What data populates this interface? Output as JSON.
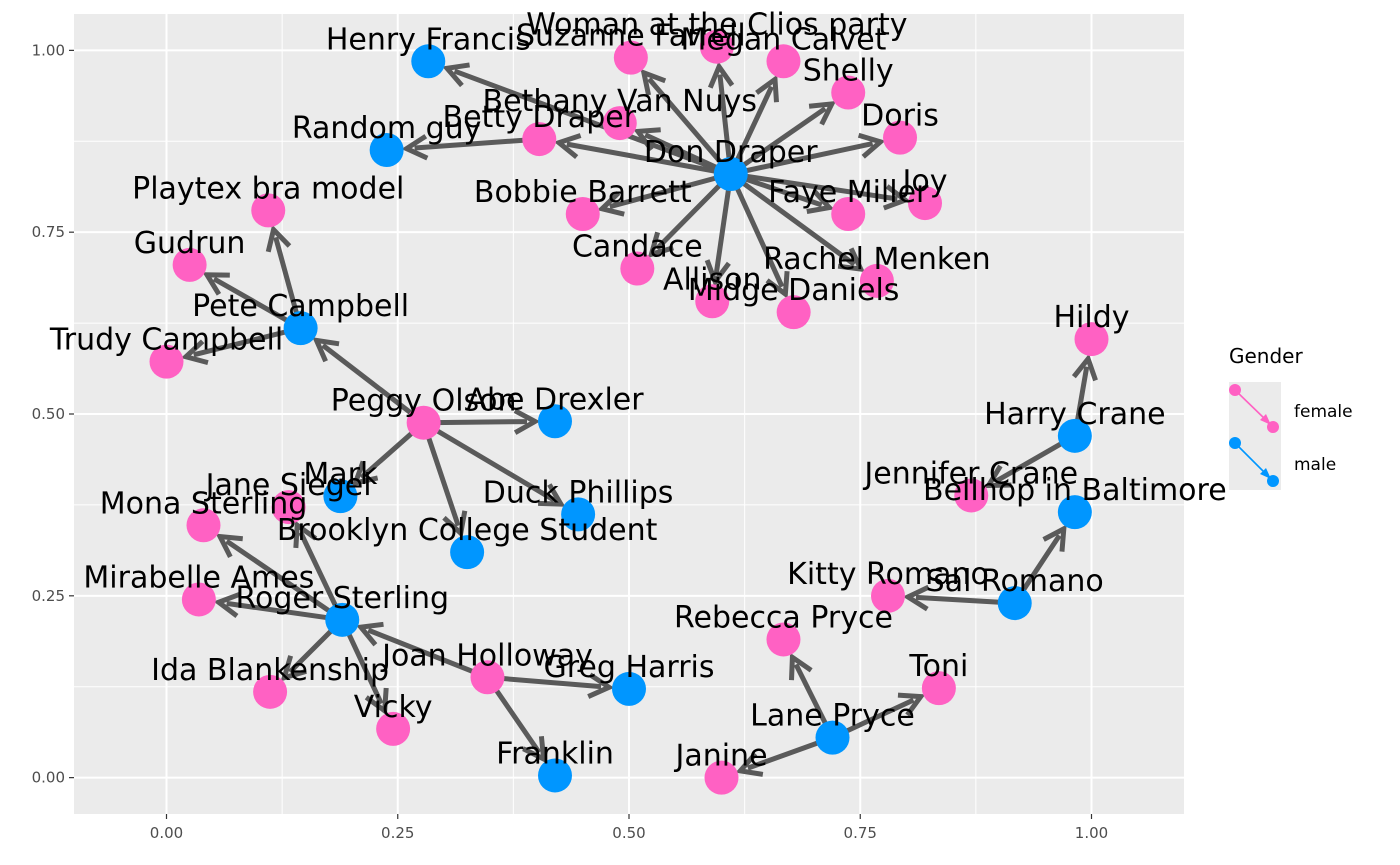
{
  "chart_data": {
    "type": "network",
    "xlim": [
      -0.1,
      1.1
    ],
    "ylim": [
      -0.05,
      1.05
    ],
    "x_ticks": [
      {
        "value": 0.0,
        "label": "0.00"
      },
      {
        "value": 0.25,
        "label": "0.25"
      },
      {
        "value": 0.5,
        "label": "0.50"
      },
      {
        "value": 0.75,
        "label": "0.75"
      },
      {
        "value": 1.0,
        "label": "1.00"
      }
    ],
    "y_ticks": [
      {
        "value": 0.0,
        "label": "0.00"
      },
      {
        "value": 0.25,
        "label": "0.25"
      },
      {
        "value": 0.5,
        "label": "0.50"
      },
      {
        "value": 0.75,
        "label": "0.75"
      },
      {
        "value": 1.0,
        "label": "1.00"
      }
    ],
    "grid": true,
    "legend": {
      "title": "Gender",
      "placement": "right",
      "entries": [
        {
          "label": "female",
          "color": "#ff61c3"
        },
        {
          "label": "male",
          "color": "#0096ff"
        }
      ]
    },
    "colors": {
      "female": "#ff61c3",
      "male": "#0096ff",
      "edge": "#5a5a5a",
      "panel": "#ebebeb"
    },
    "nodes": [
      {
        "name": "Don Draper",
        "gender": "male",
        "x": 0.61,
        "y": 0.83
      },
      {
        "name": "Henry Francis",
        "gender": "male",
        "x": 0.283,
        "y": 0.985
      },
      {
        "name": "Suzanne Farrell",
        "gender": "female",
        "x": 0.502,
        "y": 0.99
      },
      {
        "name": "Woman at the Clios party",
        "gender": "female",
        "x": 0.595,
        "y": 1.005
      },
      {
        "name": "Megan Calvet",
        "gender": "female",
        "x": 0.667,
        "y": 0.985
      },
      {
        "name": "Shelly",
        "gender": "female",
        "x": 0.737,
        "y": 0.942
      },
      {
        "name": "Bethany Van Nuys",
        "gender": "female",
        "x": 0.49,
        "y": 0.9
      },
      {
        "name": "Betty Draper",
        "gender": "female",
        "x": 0.403,
        "y": 0.878
      },
      {
        "name": "Random guy",
        "gender": "male",
        "x": 0.238,
        "y": 0.863
      },
      {
        "name": "Doris",
        "gender": "female",
        "x": 0.793,
        "y": 0.88
      },
      {
        "name": "Joy",
        "gender": "female",
        "x": 0.82,
        "y": 0.79
      },
      {
        "name": "Faye Miller",
        "gender": "female",
        "x": 0.737,
        "y": 0.775
      },
      {
        "name": "Bobbie Barrett",
        "gender": "female",
        "x": 0.45,
        "y": 0.775
      },
      {
        "name": "Candace",
        "gender": "female",
        "x": 0.509,
        "y": 0.7
      },
      {
        "name": "Rachel Menken",
        "gender": "female",
        "x": 0.768,
        "y": 0.683
      },
      {
        "name": "Allison",
        "gender": "female",
        "x": 0.59,
        "y": 0.655
      },
      {
        "name": "Midge Daniels",
        "gender": "female",
        "x": 0.678,
        "y": 0.64
      },
      {
        "name": "Playtex bra model",
        "gender": "female",
        "x": 0.11,
        "y": 0.78
      },
      {
        "name": "Gudrun",
        "gender": "female",
        "x": 0.025,
        "y": 0.705
      },
      {
        "name": "Pete Campbell",
        "gender": "male",
        "x": 0.145,
        "y": 0.618
      },
      {
        "name": "Trudy Campbell",
        "gender": "female",
        "x": 0.0,
        "y": 0.572
      },
      {
        "name": "Peggy Olson",
        "gender": "female",
        "x": 0.278,
        "y": 0.488
      },
      {
        "name": "Abe Drexler",
        "gender": "male",
        "x": 0.42,
        "y": 0.49
      },
      {
        "name": "Mark",
        "gender": "male",
        "x": 0.188,
        "y": 0.387
      },
      {
        "name": "Jane Siegel",
        "gender": "female",
        "x": 0.132,
        "y": 0.372
      },
      {
        "name": "Duck Phillips",
        "gender": "male",
        "x": 0.445,
        "y": 0.362
      },
      {
        "name": "Mona Sterling",
        "gender": "female",
        "x": 0.04,
        "y": 0.347
      },
      {
        "name": "Brooklyn College Student",
        "gender": "male",
        "x": 0.325,
        "y": 0.31
      },
      {
        "name": "Mirabelle Ames",
        "gender": "female",
        "x": 0.035,
        "y": 0.245
      },
      {
        "name": "Roger Sterling",
        "gender": "male",
        "x": 0.19,
        "y": 0.217
      },
      {
        "name": "Ida Blankenship",
        "gender": "female",
        "x": 0.112,
        "y": 0.118
      },
      {
        "name": "Vicky",
        "gender": "female",
        "x": 0.245,
        "y": 0.067
      },
      {
        "name": "Joan Holloway",
        "gender": "female",
        "x": 0.347,
        "y": 0.138
      },
      {
        "name": "Greg Harris",
        "gender": "male",
        "x": 0.5,
        "y": 0.122
      },
      {
        "name": "Franklin",
        "gender": "male",
        "x": 0.42,
        "y": 0.003
      },
      {
        "name": "Hildy",
        "gender": "female",
        "x": 1.0,
        "y": 0.603
      },
      {
        "name": "Harry Crane",
        "gender": "male",
        "x": 0.982,
        "y": 0.47
      },
      {
        "name": "Jennifer Crane",
        "gender": "female",
        "x": 0.87,
        "y": 0.388
      },
      {
        "name": "Bellhop in Baltimore",
        "gender": "male",
        "x": 0.982,
        "y": 0.365
      },
      {
        "name": "Kitty Romano",
        "gender": "female",
        "x": 0.78,
        "y": 0.25
      },
      {
        "name": "Sal Romano",
        "gender": "male",
        "x": 0.917,
        "y": 0.24
      },
      {
        "name": "Rebecca Pryce",
        "gender": "female",
        "x": 0.667,
        "y": 0.19
      },
      {
        "name": "Toni",
        "gender": "female",
        "x": 0.835,
        "y": 0.123
      },
      {
        "name": "Lane Pryce",
        "gender": "male",
        "x": 0.72,
        "y": 0.055
      },
      {
        "name": "Janine",
        "gender": "female",
        "x": 0.6,
        "y": 0.0
      }
    ],
    "edges": [
      [
        "Don Draper",
        "Henry Francis"
      ],
      [
        "Don Draper",
        "Suzanne Farrell"
      ],
      [
        "Don Draper",
        "Woman at the Clios party"
      ],
      [
        "Don Draper",
        "Megan Calvet"
      ],
      [
        "Don Draper",
        "Shelly"
      ],
      [
        "Don Draper",
        "Bethany Van Nuys"
      ],
      [
        "Don Draper",
        "Betty Draper"
      ],
      [
        "Don Draper",
        "Doris"
      ],
      [
        "Don Draper",
        "Joy"
      ],
      [
        "Don Draper",
        "Faye Miller"
      ],
      [
        "Don Draper",
        "Bobbie Barrett"
      ],
      [
        "Don Draper",
        "Candace"
      ],
      [
        "Don Draper",
        "Rachel Menken"
      ],
      [
        "Don Draper",
        "Allison"
      ],
      [
        "Don Draper",
        "Midge Daniels"
      ],
      [
        "Betty Draper",
        "Random guy"
      ],
      [
        "Pete Campbell",
        "Playtex bra model"
      ],
      [
        "Pete Campbell",
        "Gudrun"
      ],
      [
        "Pete Campbell",
        "Trudy Campbell"
      ],
      [
        "Peggy Olson",
        "Pete Campbell"
      ],
      [
        "Peggy Olson",
        "Abe Drexler"
      ],
      [
        "Peggy Olson",
        "Mark"
      ],
      [
        "Peggy Olson",
        "Duck Phillips"
      ],
      [
        "Peggy Olson",
        "Brooklyn College Student"
      ],
      [
        "Roger Sterling",
        "Jane Siegel"
      ],
      [
        "Roger Sterling",
        "Mona Sterling"
      ],
      [
        "Roger Sterling",
        "Mirabelle Ames"
      ],
      [
        "Roger Sterling",
        "Ida Blankenship"
      ],
      [
        "Roger Sterling",
        "Vicky"
      ],
      [
        "Joan Holloway",
        "Roger Sterling"
      ],
      [
        "Joan Holloway",
        "Greg Harris"
      ],
      [
        "Joan Holloway",
        "Franklin"
      ],
      [
        "Harry Crane",
        "Hildy"
      ],
      [
        "Harry Crane",
        "Jennifer Crane"
      ],
      [
        "Sal Romano",
        "Bellhop in Baltimore"
      ],
      [
        "Sal Romano",
        "Kitty Romano"
      ],
      [
        "Lane Pryce",
        "Rebecca Pryce"
      ],
      [
        "Lane Pryce",
        "Toni"
      ],
      [
        "Lane Pryce",
        "Janine"
      ]
    ]
  }
}
